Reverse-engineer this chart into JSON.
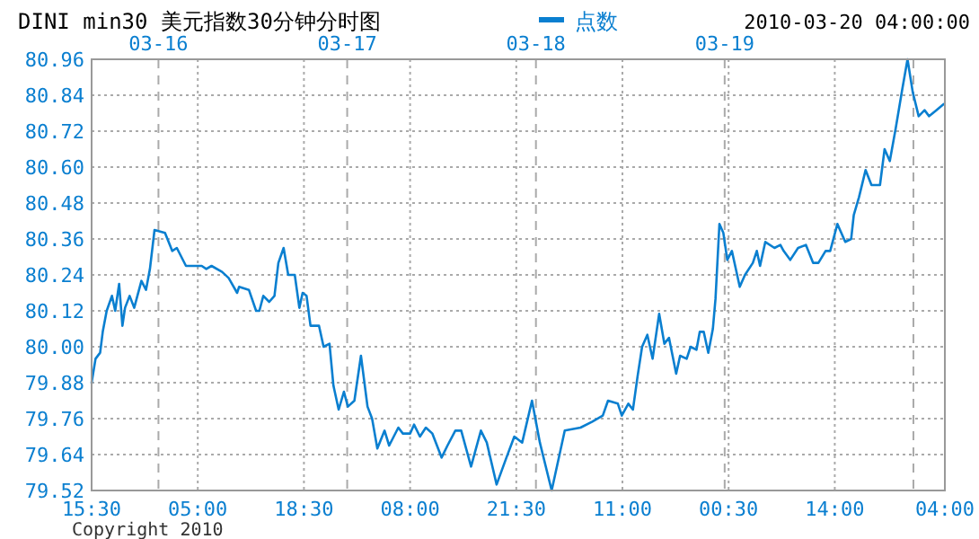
{
  "chart_data": {
    "type": "line",
    "title": "DINI min30  美元指数30分钟分时图",
    "annotations": [
      "2010-03-20 04:00:00",
      "Copyright 2010"
    ],
    "series": [
      {
        "name": "点数",
        "color": "#0a7fd0",
        "x": [
          "2010-03-15T15:30",
          "2010-03-15T16:00",
          "2010-03-15T16:35",
          "2010-03-15T16:55",
          "2010-03-15T17:25",
          "2010-03-15T18:05",
          "2010-03-15T18:30",
          "2010-03-15T19:00",
          "2010-03-15T19:25",
          "2010-03-15T19:45",
          "2010-03-15T20:20",
          "2010-03-15T20:55",
          "2010-03-15T21:50",
          "2010-03-15T22:25",
          "2010-03-15T22:55",
          "2010-03-15T23:30",
          "2010-03-16T00:50",
          "2010-03-16T01:45",
          "2010-03-16T02:20",
          "2010-03-16T03:30",
          "2010-03-16T05:30",
          "2010-03-16T06:05",
          "2010-03-16T06:45",
          "2010-03-16T08:05",
          "2010-03-16T08:55",
          "2010-03-16T10:00",
          "2010-03-16T10:15",
          "2010-03-16T11:30",
          "2010-03-16T12:25",
          "2010-03-16T12:50",
          "2010-03-16T13:20",
          "2010-03-16T14:05",
          "2010-03-16T14:45",
          "2010-03-16T15:15",
          "2010-03-16T15:55",
          "2010-03-16T16:30",
          "2010-03-16T17:20",
          "2010-03-16T17:55",
          "2010-03-16T18:20",
          "2010-03-16T18:50",
          "2010-03-16T19:20",
          "2010-03-16T20:25",
          "2010-03-16T21:00",
          "2010-03-16T21:45",
          "2010-03-16T22:15",
          "2010-03-16T22:55",
          "2010-03-16T23:35",
          "2010-03-17T00:05",
          "2010-03-17T00:55",
          "2010-03-17T01:45",
          "2010-03-17T02:35",
          "2010-03-17T03:10",
          "2010-03-17T03:50",
          "2010-03-17T04:45",
          "2010-03-17T05:20",
          "2010-03-17T06:30",
          "2010-03-17T07:05",
          "2010-03-17T08:00",
          "2010-03-17T08:30",
          "2010-03-17T09:15",
          "2010-03-17T10:00",
          "2010-03-17T10:50",
          "2010-03-17T12:00",
          "2010-03-17T12:45",
          "2010-03-17T13:45",
          "2010-03-17T14:30",
          "2010-03-17T15:45",
          "2010-03-17T17:00",
          "2010-03-17T17:45",
          "2010-03-17T19:00",
          "2010-03-17T20:15",
          "2010-03-17T21:15",
          "2010-03-17T22:15",
          "2010-03-17T23:30",
          "2010-03-18T00:30",
          "2010-03-18T02:00",
          "2010-03-18T03:40",
          "2010-03-18T05:40",
          "2010-03-18T07:10",
          "2010-03-18T08:30",
          "2010-03-18T09:10",
          "2010-03-18T10:25",
          "2010-03-18T10:55",
          "2010-03-18T11:45",
          "2010-03-18T12:20",
          "2010-03-18T12:55",
          "2010-03-18T13:30",
          "2010-03-18T14:10",
          "2010-03-18T14:50",
          "2010-03-18T15:40",
          "2010-03-18T16:20",
          "2010-03-18T16:55",
          "2010-03-18T17:50",
          "2010-03-18T18:20",
          "2010-03-18T19:10",
          "2010-03-18T19:40",
          "2010-03-18T20:25",
          "2010-03-18T20:50",
          "2010-03-18T21:20",
          "2010-03-18T21:55",
          "2010-03-18T22:30",
          "2010-03-18T22:50",
          "2010-03-18T23:20",
          "2010-03-18T23:50",
          "2010-03-19T00:20",
          "2010-03-19T00:55",
          "2010-03-19T01:55",
          "2010-03-19T02:35",
          "2010-03-19T03:35",
          "2010-03-19T04:05",
          "2010-03-19T04:30",
          "2010-03-19T05:10",
          "2010-03-19T06:20",
          "2010-03-19T07:05",
          "2010-03-19T07:30",
          "2010-03-19T08:20",
          "2010-03-19T09:20",
          "2010-03-19T10:20",
          "2010-03-19T11:15",
          "2010-03-19T11:55",
          "2010-03-19T12:50",
          "2010-03-19T13:25",
          "2010-03-19T14:20",
          "2010-03-19T15:20",
          "2010-03-19T16:05",
          "2010-03-19T16:25",
          "2010-03-19T17:05",
          "2010-03-19T17:55",
          "2010-03-19T18:40",
          "2010-03-19T19:45",
          "2010-03-19T20:20",
          "2010-03-19T21:00",
          "2010-03-19T21:45",
          "2010-03-19T22:35",
          "2010-03-19T23:15",
          "2010-03-19T23:55",
          "2010-03-20T00:40",
          "2010-03-20T01:25",
          "2010-03-20T02:00",
          "2010-03-20T02:55",
          "2010-03-20T03:50"
        ],
        "values": [
          79.88,
          79.96,
          79.98,
          80.05,
          80.12,
          80.17,
          80.12,
          80.21,
          80.07,
          80.13,
          80.17,
          80.13,
          80.22,
          80.19,
          80.26,
          80.39,
          80.38,
          80.32,
          80.33,
          80.27,
          80.27,
          80.26,
          80.27,
          80.25,
          80.23,
          80.18,
          80.2,
          80.19,
          80.12,
          80.12,
          80.17,
          80.15,
          80.17,
          80.28,
          80.33,
          80.24,
          80.24,
          80.13,
          80.18,
          80.17,
          80.07,
          80.07,
          80.0,
          80.01,
          79.87,
          79.79,
          79.85,
          79.8,
          79.82,
          79.97,
          79.8,
          79.76,
          79.66,
          79.72,
          79.67,
          79.73,
          79.71,
          79.71,
          79.74,
          79.7,
          79.73,
          79.71,
          79.63,
          79.67,
          79.72,
          79.72,
          79.6,
          79.72,
          79.68,
          79.54,
          79.63,
          79.7,
          79.68,
          79.82,
          79.68,
          79.52,
          79.72,
          79.73,
          79.75,
          79.77,
          79.82,
          79.81,
          79.77,
          79.81,
          79.79,
          79.9,
          80.0,
          80.04,
          79.96,
          80.11,
          80.01,
          80.03,
          79.91,
          79.97,
          79.96,
          80.0,
          79.99,
          80.05,
          80.05,
          79.98,
          80.06,
          80.16,
          80.41,
          80.38,
          80.29,
          80.32,
          80.2,
          80.24,
          80.28,
          80.32,
          80.27,
          80.35,
          80.33,
          80.34,
          80.32,
          80.29,
          80.33,
          80.34,
          80.28,
          80.28,
          80.32,
          80.32,
          80.41,
          80.35,
          80.36,
          80.44,
          80.5,
          80.59,
          80.54,
          80.54,
          80.66,
          80.62,
          80.73,
          80.86,
          80.96,
          80.85,
          80.77,
          80.79,
          80.77,
          80.79,
          80.81
        ]
      }
    ],
    "xlim": [
      "2010-03-15T15:30",
      "2010-03-20T04:00"
    ],
    "xticks": [
      {
        "value": "2010-03-15T15:30",
        "label": "15:30"
      },
      {
        "value": "2010-03-16T05:00",
        "label": "05:00"
      },
      {
        "value": "2010-03-16T18:30",
        "label": "18:30"
      },
      {
        "value": "2010-03-17T08:00",
        "label": "08:00"
      },
      {
        "value": "2010-03-17T21:30",
        "label": "21:30"
      },
      {
        "value": "2010-03-18T11:00",
        "label": "11:00"
      },
      {
        "value": "2010-03-19T00:30",
        "label": "00:30"
      },
      {
        "value": "2010-03-19T14:00",
        "label": "14:00"
      },
      {
        "value": "2010-03-20T04:00",
        "label": "04:00"
      }
    ],
    "x2lim": [
      "2010-03-15T15:30",
      "2010-03-20T04:00"
    ],
    "x2ticks": [
      {
        "value": "2010-03-16",
        "label": "03-16"
      },
      {
        "value": "2010-03-17",
        "label": "03-17"
      },
      {
        "value": "2010-03-18",
        "label": "03-18"
      },
      {
        "value": "2010-03-19",
        "label": "03-19"
      },
      {
        "value": "2010-03-20",
        "label": null
      }
    ],
    "ylim": [
      79.52,
      80.96
    ],
    "yticks": [
      {
        "value": 79.52,
        "label": "79.52"
      },
      {
        "value": 79.64,
        "label": "79.64"
      },
      {
        "value": 79.76,
        "label": "79.76"
      },
      {
        "value": 79.88,
        "label": "79.88"
      },
      {
        "value": 80.0,
        "label": "80.00"
      },
      {
        "value": 80.12,
        "label": "80.12"
      },
      {
        "value": 80.24,
        "label": "80.24"
      },
      {
        "value": 80.36,
        "label": "80.36"
      },
      {
        "value": 80.48,
        "label": "80.48"
      },
      {
        "value": 80.6,
        "label": "80.60"
      },
      {
        "value": 80.72,
        "label": "80.72"
      },
      {
        "value": 80.84,
        "label": "80.84"
      },
      {
        "value": 80.96,
        "label": "80.96"
      }
    ],
    "grid": true,
    "legend": "top",
    "marker": "none",
    "line_style": "solid"
  }
}
